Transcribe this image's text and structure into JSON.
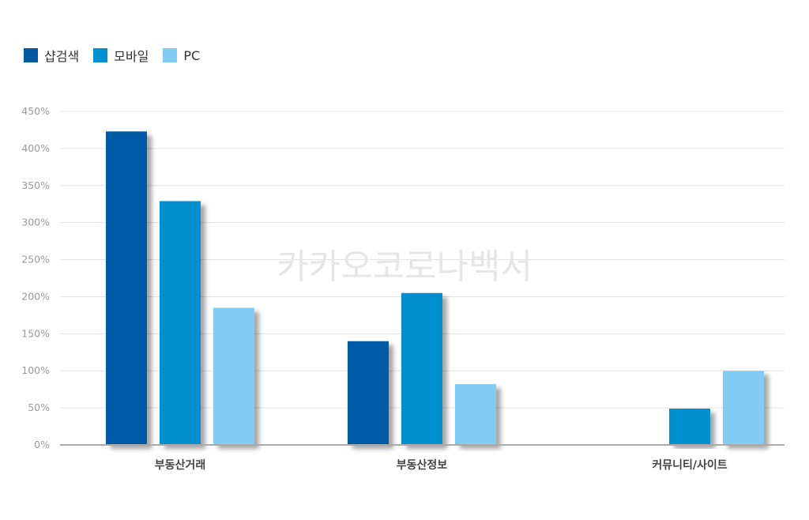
{
  "legend": {
    "items": [
      {
        "label": "샵검색",
        "color": "#005aa5"
      },
      {
        "label": "모바일",
        "color": "#0290d0"
      },
      {
        "label": "PC",
        "color": "#82ccf3"
      }
    ]
  },
  "watermark": "카카오코로나백서",
  "chart_data": {
    "type": "bar",
    "categories": [
      "부동산거래",
      "부동산정보",
      "커뮤니티/사이트"
    ],
    "series": [
      {
        "name": "샵검색",
        "color": "#005aa5",
        "values": [
          423,
          140,
          null
        ]
      },
      {
        "name": "모바일",
        "color": "#0290d0",
        "values": [
          329,
          205,
          49
        ]
      },
      {
        "name": "PC",
        "color": "#82ccf3",
        "values": [
          185,
          82,
          100
        ]
      }
    ],
    "ylim": [
      0,
      450
    ],
    "yticks": [
      0,
      50,
      100,
      150,
      200,
      250,
      300,
      350,
      400,
      450
    ],
    "ytick_labels": [
      "0%",
      "50%",
      "100%",
      "150%",
      "200%",
      "250%",
      "300%",
      "350%",
      "400%",
      "450%"
    ],
    "grid": true,
    "legend_position": "top-left"
  }
}
